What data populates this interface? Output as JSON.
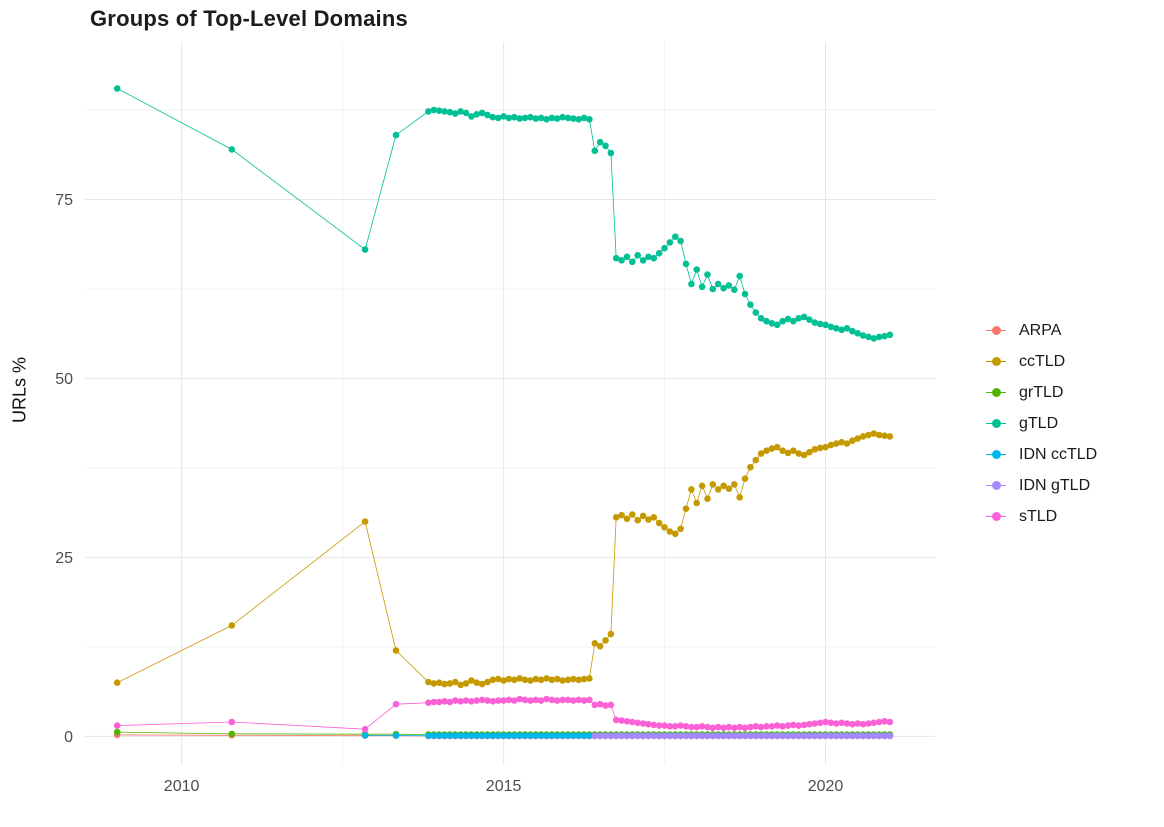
{
  "figure": {
    "title": "Groups of Top-Level Domains",
    "y_axis_label": "URLs %"
  },
  "chart_data": {
    "type": "line",
    "title": "Groups of Top-Level Domains",
    "xlabel": "",
    "ylabel": "URLs %",
    "x_ticks": [
      2010,
      2015,
      2020
    ],
    "x_minor": [
      2012.5,
      2017.5
    ],
    "y_ticks": [
      0,
      25,
      50,
      75
    ],
    "y_minor": [
      12.5,
      37.5,
      62.5,
      87.5
    ],
    "xlim": [
      2008.5,
      2021.7
    ],
    "ylim": [
      -4,
      97
    ],
    "grid": true,
    "legend_position": "right",
    "background": "#ffffff",
    "grid_major_color": "#e7e7e7",
    "grid_minor_color": "#f3f3f3",
    "tick_label_color": "#4d4d4d",
    "series": [
      {
        "name": "ARPA",
        "color": "#F8766D",
        "sparse": [
          [
            2009.0,
            0.2
          ],
          [
            2010.78,
            0.15
          ],
          [
            2012.85,
            0.1
          ],
          [
            2013.33,
            0.1
          ]
        ],
        "dense": {
          "x_start": 2013.8333,
          "x_step": 0.083333,
          "count": 87,
          "value": 0.05
        }
      },
      {
        "name": "ccTLD",
        "color": "#C49A00",
        "sparse": [
          [
            2009.0,
            7.5
          ],
          [
            2010.78,
            15.5
          ],
          [
            2012.85,
            30.0
          ],
          [
            2013.33,
            12.0
          ]
        ],
        "dense": {
          "x_start": 2013.8333,
          "x_step": 0.083333,
          "y": [
            7.6,
            7.4,
            7.5,
            7.3,
            7.4,
            7.6,
            7.2,
            7.4,
            7.8,
            7.5,
            7.3,
            7.6,
            7.9,
            8.0,
            7.8,
            8.0,
            7.9,
            8.1,
            7.9,
            7.8,
            8.0,
            7.9,
            8.1,
            7.9,
            8.0,
            7.8,
            7.9,
            8.0,
            7.9,
            8.0,
            8.1,
            13.0,
            12.6,
            13.4,
            14.3,
            30.6,
            30.9,
            30.4,
            31.0,
            30.2,
            30.8,
            30.3,
            30.6,
            29.8,
            29.2,
            28.6,
            28.3,
            29.0,
            31.8,
            34.5,
            32.6,
            35.0,
            33.2,
            35.2,
            34.5,
            35.0,
            34.6,
            35.2,
            33.4,
            36.0,
            37.6,
            38.6,
            39.5,
            39.9,
            40.2,
            40.4,
            39.9,
            39.6,
            39.9,
            39.5,
            39.3,
            39.7,
            40.1,
            40.3,
            40.4,
            40.7,
            40.9,
            41.1,
            40.9,
            41.3,
            41.6,
            41.9,
            42.1,
            42.3,
            42.1,
            42.0,
            41.9
          ]
        }
      },
      {
        "name": "grTLD",
        "color": "#53B400",
        "sparse": [
          [
            2009.0,
            0.6
          ],
          [
            2010.78,
            0.35
          ],
          [
            2012.85,
            0.3
          ],
          [
            2013.33,
            0.3
          ]
        ],
        "dense": {
          "x_start": 2013.8333,
          "x_step": 0.083333,
          "count": 87,
          "value": 0.25
        }
      },
      {
        "name": "gTLD",
        "color": "#00C094",
        "sparse": [
          [
            2009.0,
            90.5
          ],
          [
            2010.78,
            82.0
          ],
          [
            2012.85,
            68.0
          ],
          [
            2013.33,
            84.0
          ]
        ],
        "dense": {
          "x_start": 2013.8333,
          "x_step": 0.083333,
          "y": [
            87.3,
            87.5,
            87.4,
            87.3,
            87.2,
            87.0,
            87.3,
            87.1,
            86.6,
            86.9,
            87.1,
            86.8,
            86.5,
            86.4,
            86.6,
            86.4,
            86.5,
            86.3,
            86.4,
            86.5,
            86.3,
            86.4,
            86.2,
            86.4,
            86.3,
            86.5,
            86.4,
            86.3,
            86.2,
            86.4,
            86.2,
            81.8,
            83.0,
            82.5,
            81.5,
            66.8,
            66.5,
            67.0,
            66.3,
            67.2,
            66.5,
            67.0,
            66.8,
            67.5,
            68.2,
            69.0,
            69.8,
            69.2,
            66.0,
            63.2,
            65.2,
            62.8,
            64.5,
            62.5,
            63.2,
            62.6,
            63.0,
            62.4,
            64.3,
            61.8,
            60.3,
            59.2,
            58.4,
            58.0,
            57.7,
            57.5,
            58.0,
            58.3,
            58.0,
            58.4,
            58.6,
            58.2,
            57.8,
            57.6,
            57.5,
            57.2,
            57.0,
            56.8,
            57.0,
            56.6,
            56.3,
            56.0,
            55.8,
            55.6,
            55.8,
            55.9,
            56.1
          ]
        }
      },
      {
        "name": "IDN ccTLD",
        "color": "#00B6EB",
        "sparse": [
          [
            2012.85,
            0.15
          ],
          [
            2013.33,
            0.12
          ]
        ],
        "dense": {
          "x_start": 2013.8333,
          "x_step": 0.083333,
          "count": 87,
          "value": 0.1
        }
      },
      {
        "name": "IDN gTLD",
        "color": "#A58AFF",
        "sparse": [],
        "dense": {
          "x_start": 2016.4167,
          "x_step": 0.083333,
          "count": 56,
          "value": 0.08
        }
      },
      {
        "name": "sTLD",
        "color": "#FB61D7",
        "sparse": [
          [
            2009.0,
            1.5
          ],
          [
            2010.78,
            2.0
          ],
          [
            2012.85,
            1.0
          ],
          [
            2013.33,
            4.5
          ]
        ],
        "dense": {
          "x_start": 2013.8333,
          "x_step": 0.083333,
          "y": [
            4.7,
            4.8,
            4.8,
            4.9,
            4.8,
            5.0,
            4.9,
            5.0,
            4.9,
            5.0,
            5.1,
            5.0,
            4.9,
            5.0,
            5.0,
            5.1,
            5.0,
            5.2,
            5.1,
            5.0,
            5.1,
            5.0,
            5.2,
            5.1,
            5.0,
            5.1,
            5.1,
            5.0,
            5.1,
            5.0,
            5.1,
            4.4,
            4.5,
            4.3,
            4.4,
            2.3,
            2.2,
            2.1,
            2.0,
            1.9,
            1.8,
            1.7,
            1.6,
            1.5,
            1.5,
            1.4,
            1.4,
            1.5,
            1.4,
            1.3,
            1.3,
            1.4,
            1.3,
            1.2,
            1.3,
            1.2,
            1.3,
            1.2,
            1.3,
            1.2,
            1.3,
            1.4,
            1.3,
            1.4,
            1.4,
            1.5,
            1.4,
            1.5,
            1.6,
            1.5,
            1.6,
            1.7,
            1.8,
            1.9,
            2.0,
            1.9,
            1.8,
            1.9,
            1.8,
            1.7,
            1.8,
            1.7,
            1.8,
            1.9,
            2.0,
            2.1,
            2.0
          ]
        }
      }
    ]
  }
}
